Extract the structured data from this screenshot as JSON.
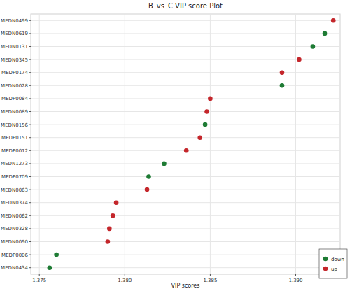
{
  "chart_data": {
    "type": "scatter",
    "orientation": "horizontal",
    "title": "B_vs_C VIP score Plot",
    "x_label": "VIP scores",
    "categories": [
      "MEDN0499",
      "MEDN0619",
      "MEDN0131",
      "MEDN0345",
      "MEDP0174",
      "MEDN0028",
      "MEDP0084",
      "MEDN0089",
      "MEDN0156",
      "MEDP0151",
      "MEDP0012",
      "MEDN1273",
      "MEDP0709",
      "MEDN0063",
      "MEDN0374",
      "MEDN0062",
      "MEDN0328",
      "MEDN0090",
      "MEDP0006",
      "MEDN0434"
    ],
    "series": [
      {
        "name": "down",
        "color": "#1e7b34",
        "marker": "circle",
        "values": [
          null,
          1.3917,
          1.391,
          null,
          null,
          1.3892,
          null,
          null,
          1.3847,
          null,
          null,
          1.3823,
          1.3814,
          null,
          null,
          null,
          null,
          null,
          1.376,
          1.3756
        ]
      },
      {
        "name": "up",
        "color": "#c4262b",
        "marker": "circle",
        "values": [
          1.3922,
          null,
          null,
          1.3902,
          1.3892,
          null,
          1.385,
          1.3848,
          null,
          1.3844,
          1.3836,
          null,
          null,
          1.3813,
          1.3795,
          1.3793,
          1.3791,
          1.379,
          null,
          null
        ]
      }
    ],
    "xlim": [
      1.3745,
      1.3926
    ],
    "xticks": [
      {
        "value": 1.375,
        "label": "1.375"
      },
      {
        "value": 1.38,
        "label": "1.380"
      },
      {
        "value": 1.385,
        "label": "1.385"
      },
      {
        "value": 1.39,
        "label": "1.390"
      }
    ],
    "grid": true,
    "legend": "bottom-right"
  }
}
